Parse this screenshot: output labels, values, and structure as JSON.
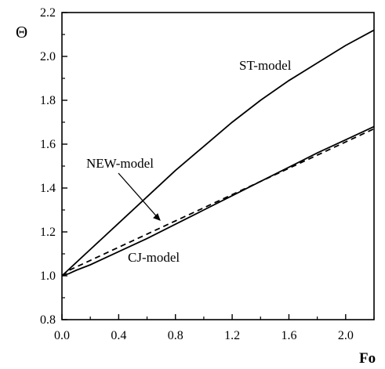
{
  "chart_data": {
    "type": "line",
    "xlabel": "Fo",
    "ylabel": "Θ",
    "xlim": [
      0.0,
      2.2
    ],
    "ylim": [
      0.8,
      2.2
    ],
    "xticks": [
      0.0,
      0.4,
      0.8,
      1.2,
      1.6,
      2.0
    ],
    "xtick_labels": [
      "0.0",
      "0.4",
      "0.8",
      "1.2",
      "1.6",
      "2.0"
    ],
    "yticks": [
      0.8,
      1.0,
      1.2,
      1.4,
      1.6,
      1.8,
      2.0,
      2.2
    ],
    "ytick_labels": [
      "0.8",
      "1.0",
      "1.2",
      "1.4",
      "1.6",
      "1.8",
      "2.0",
      "2.2"
    ],
    "grid": false,
    "series": [
      {
        "name": "ST-model",
        "style": "solid",
        "x": [
          0.0,
          0.05,
          0.1,
          0.2,
          0.4,
          0.6,
          0.8,
          1.0,
          1.2,
          1.4,
          1.6,
          1.8,
          2.0,
          2.2
        ],
        "y": [
          1.0,
          1.03,
          1.06,
          1.12,
          1.24,
          1.36,
          1.48,
          1.59,
          1.7,
          1.8,
          1.89,
          1.97,
          2.05,
          2.12
        ]
      },
      {
        "name": "NEW-model",
        "style": "dashed",
        "x": [
          0.0,
          0.05,
          0.1,
          0.2,
          0.4,
          0.6,
          0.8,
          1.0,
          1.2,
          1.4,
          1.6,
          1.8,
          2.0,
          2.2
        ],
        "y": [
          1.0,
          1.025,
          1.04,
          1.07,
          1.13,
          1.19,
          1.25,
          1.31,
          1.37,
          1.43,
          1.49,
          1.55,
          1.61,
          1.67
        ]
      },
      {
        "name": "CJ-model",
        "style": "solid",
        "x": [
          0.0,
          0.05,
          0.1,
          0.2,
          0.4,
          0.6,
          0.8,
          1.0,
          1.2,
          1.4,
          1.6,
          1.8,
          2.0,
          2.2
        ],
        "y": [
          1.0,
          1.01,
          1.025,
          1.05,
          1.11,
          1.17,
          1.235,
          1.3,
          1.365,
          1.43,
          1.495,
          1.56,
          1.62,
          1.68
        ]
      }
    ],
    "annotations": [
      {
        "text": "ST-model",
        "series": "ST-model"
      },
      {
        "text": "NEW-model",
        "series": "NEW-model",
        "arrow": true
      },
      {
        "text": "CJ-model",
        "series": "CJ-model"
      }
    ]
  }
}
